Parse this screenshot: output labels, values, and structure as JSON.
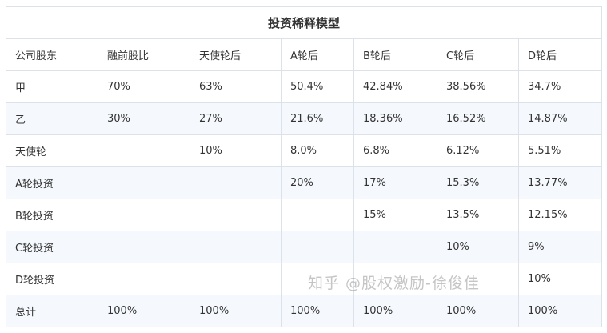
{
  "title": "投资稀释模型",
  "headers": [
    "公司股东",
    "融前股比",
    "天使轮后",
    "A轮后",
    "B轮后",
    "C轮后",
    "D轮后"
  ],
  "rows": [
    [
      "甲",
      "70%",
      "63%",
      "50.4%",
      "42.84%",
      "38.56%",
      "34.7%"
    ],
    [
      "乙",
      "30%",
      "27%",
      "21.6%",
      "18.36%",
      "16.52%",
      "14.87%"
    ],
    [
      "天使轮",
      "",
      "10%",
      "8.0%",
      "6.8%",
      "6.12%",
      "5.51%"
    ],
    [
      "A轮投资",
      "",
      "",
      "20%",
      "17%",
      "15.3%",
      "13.77%"
    ],
    [
      "B轮投资",
      "",
      "",
      "",
      "15%",
      "13.5%",
      "12.15%"
    ],
    [
      "C轮投资",
      "",
      "",
      "",
      "",
      "10%",
      "9%"
    ],
    [
      "D轮投资",
      "",
      "",
      "",
      "",
      "",
      "10%"
    ],
    [
      "总计",
      "100%",
      "100%",
      "100%",
      "100%",
      "100%",
      "100%"
    ]
  ],
  "watermark": "知乎 @股权激励-徐俊佳"
}
